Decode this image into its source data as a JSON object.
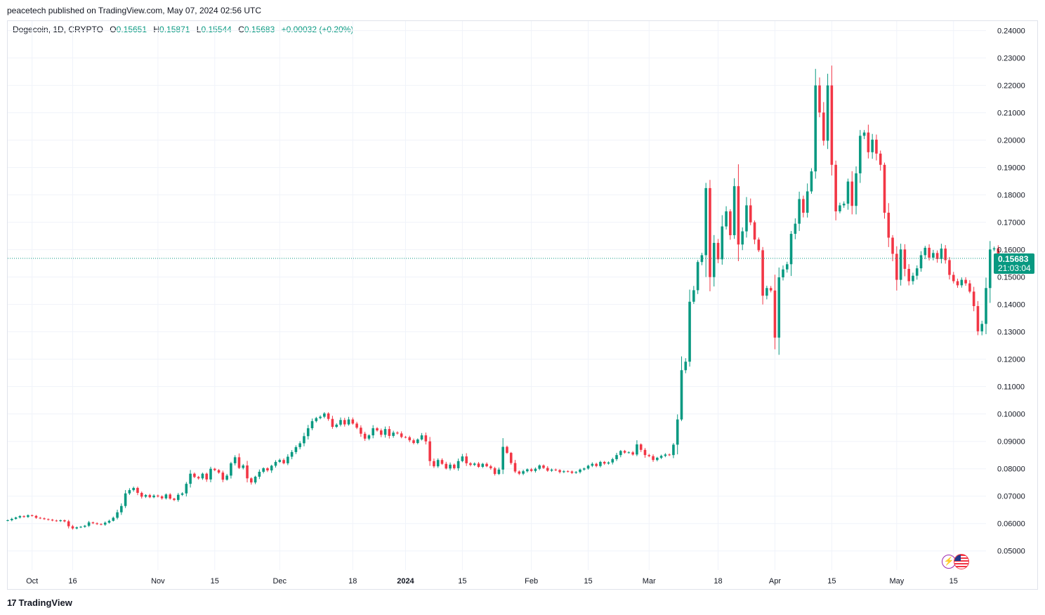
{
  "header": {
    "publisher": "peacetech published on TradingView.com, May 07, 2024 02:56 UTC"
  },
  "legend": {
    "symbol": "Dogecoin, 1D, CRYPTO",
    "open_label": "O",
    "open": "0.15651",
    "high_label": "H",
    "high": "0.15871",
    "low_label": "L",
    "low": "0.15544",
    "close_label": "C",
    "close": "0.15683",
    "change": "+0.00032 (+0.20%)"
  },
  "price_tag": {
    "price": "0.15683",
    "countdown": "21:03:04",
    "color": "#089981"
  },
  "footer": {
    "brand": "TradingView",
    "logo_glyph": "17"
  },
  "badges": {
    "lightning_glyph": "⚡"
  },
  "colors": {
    "up": "#089981",
    "down": "#f23645",
    "grid": "#f0f3fa",
    "axis_text": "#131722"
  },
  "chart_data": {
    "type": "candlestick",
    "title": "Dogecoin, 1D, CRYPTO",
    "ylim": [
      0.043,
      0.2435
    ],
    "y_ticks": [
      "0.24000",
      "0.23000",
      "0.22000",
      "0.21000",
      "0.20000",
      "0.19000",
      "0.18000",
      "0.17000",
      "0.16000",
      "0.15000",
      "0.14000",
      "0.13000",
      "0.12000",
      "0.11000",
      "0.10000",
      "0.09000",
      "0.08000",
      "0.07000",
      "0.06000",
      "0.05000"
    ],
    "x_ticks": [
      {
        "label": "Oct",
        "day": 6
      },
      {
        "label": "16",
        "day": 16
      },
      {
        "label": "Nov",
        "day": 37
      },
      {
        "label": "15",
        "day": 51
      },
      {
        "label": "Dec",
        "day": 67
      },
      {
        "label": "18",
        "day": 85
      },
      {
        "label": "2024",
        "day": 98,
        "bold": true
      },
      {
        "label": "15",
        "day": 112
      },
      {
        "label": "Feb",
        "day": 129
      },
      {
        "label": "15",
        "day": 143
      },
      {
        "label": "Mar",
        "day": 158
      },
      {
        "label": "18",
        "day": 175
      },
      {
        "label": "Apr",
        "day": 189
      },
      {
        "label": "15",
        "day": 203
      },
      {
        "label": "May",
        "day": 219
      },
      {
        "label": "15",
        "day": 233
      }
    ],
    "x_day_range": [
      0,
      241
    ],
    "last_price": 0.15683,
    "closes": [
      0.0612,
      0.0617,
      0.0622,
      0.0627,
      0.0624,
      0.063,
      0.0628,
      0.0621,
      0.0619,
      0.0616,
      0.0614,
      0.0611,
      0.0609,
      0.0612,
      0.0608,
      0.059,
      0.0582,
      0.0586,
      0.0588,
      0.0592,
      0.0604,
      0.0601,
      0.0598,
      0.0596,
      0.0603,
      0.061,
      0.0621,
      0.0641,
      0.0664,
      0.071,
      0.0722,
      0.073,
      0.0712,
      0.0698,
      0.0704,
      0.0696,
      0.0702,
      0.0699,
      0.0692,
      0.0706,
      0.0691,
      0.0686,
      0.0705,
      0.071,
      0.0745,
      0.0782,
      0.077,
      0.0765,
      0.0782,
      0.0761,
      0.08,
      0.0795,
      0.0786,
      0.076,
      0.0775,
      0.082,
      0.0842,
      0.0803,
      0.0812,
      0.0765,
      0.075,
      0.0771,
      0.0789,
      0.0802,
      0.0794,
      0.0811,
      0.0825,
      0.0832,
      0.082,
      0.0844,
      0.0861,
      0.0879,
      0.0893,
      0.0919,
      0.0948,
      0.0974,
      0.0985,
      0.099,
      0.1002,
      0.0982,
      0.0953,
      0.0961,
      0.0978,
      0.0962,
      0.098,
      0.0965,
      0.095,
      0.0928,
      0.091,
      0.0922,
      0.0948,
      0.094,
      0.0924,
      0.0945,
      0.092,
      0.0932,
      0.0929,
      0.0916,
      0.0915,
      0.0904,
      0.0894,
      0.0907,
      0.0922,
      0.09,
      0.0828,
      0.0809,
      0.0832,
      0.0818,
      0.0801,
      0.0815,
      0.0802,
      0.0828,
      0.0845,
      0.082,
      0.0814,
      0.0819,
      0.0807,
      0.0818,
      0.0809,
      0.0802,
      0.0781,
      0.0797,
      0.088,
      0.0858,
      0.0821,
      0.079,
      0.0782,
      0.0791,
      0.0798,
      0.0792,
      0.08,
      0.0812,
      0.0803,
      0.0793,
      0.0797,
      0.0795,
      0.0788,
      0.0791,
      0.079,
      0.0785,
      0.0788,
      0.0797,
      0.0801,
      0.0811,
      0.0818,
      0.081,
      0.0825,
      0.0819,
      0.0823,
      0.0835,
      0.085,
      0.0865,
      0.0859,
      0.086,
      0.0852,
      0.0889,
      0.0869,
      0.085,
      0.0846,
      0.0832,
      0.084,
      0.0847,
      0.0852,
      0.085,
      0.0888,
      0.098,
      0.116,
      0.1191,
      0.141,
      0.1452,
      0.1555,
      0.158,
      0.1825,
      0.15,
      0.1625,
      0.1565,
      0.1685,
      0.174,
      0.1653,
      0.1832,
      0.1619,
      0.1667,
      0.1762,
      0.17,
      0.1637,
      0.1598,
      0.1432,
      0.146,
      0.1451,
      0.1279,
      0.1499,
      0.1528,
      0.1547,
      0.1658,
      0.1695,
      0.1785,
      0.1735,
      0.1813,
      0.1886,
      0.22,
      0.2101,
      0.1998,
      0.22,
      0.191,
      0.174,
      0.1762,
      0.1768,
      0.1849,
      0.176,
      0.1879,
      0.2016,
      0.2028,
      0.1956,
      0.2002,
      0.1951,
      0.191,
      0.1735,
      0.1644,
      0.1585,
      0.149,
      0.1601,
      0.153,
      0.1485,
      0.1505,
      0.1532,
      0.158,
      0.1607,
      0.1571,
      0.1588,
      0.1566,
      0.1604,
      0.1562,
      0.1508,
      0.1485,
      0.147,
      0.149,
      0.1477,
      0.1447,
      0.1394,
      0.1302,
      0.1329,
      0.146,
      0.1601,
      0.1605,
      0.15651,
      0.15683
    ],
    "source": "Daily OHLC candles (Oct 2023 – May 2024); closes read off the price axis, opens equal the previous close"
  }
}
